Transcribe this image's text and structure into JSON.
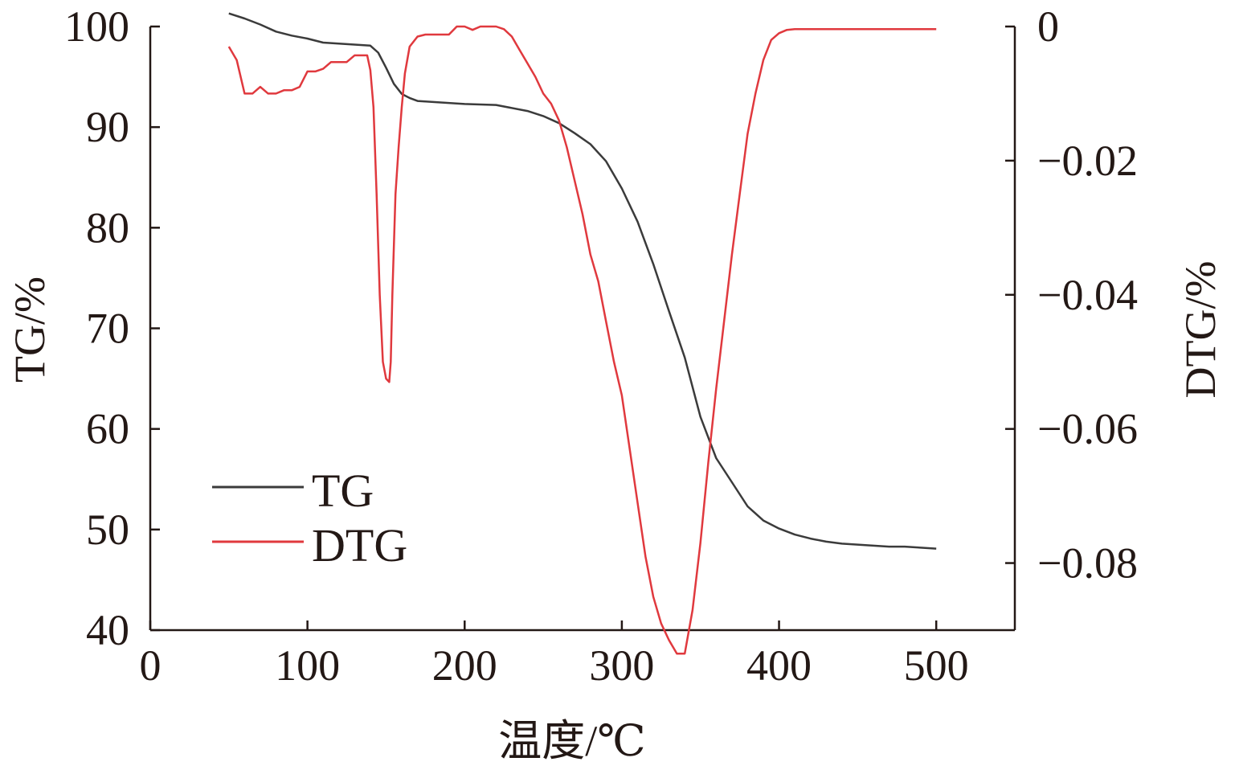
{
  "chart_data": {
    "type": "line",
    "xlabel": "温度/℃",
    "ylabel_left": "TG/%",
    "ylabel_right": "DTG/%",
    "xlim": [
      0,
      550
    ],
    "ylim_left": [
      40,
      100
    ],
    "ylim_right": [
      -0.09,
      0
    ],
    "x_ticks": [
      "0",
      "100",
      "200",
      "300",
      "400",
      "500"
    ],
    "y_left_ticks": [
      "40",
      "50",
      "60",
      "70",
      "80",
      "90",
      "100"
    ],
    "y_right_ticks": [
      "0",
      "−0.02",
      "−0.04",
      "−0.06",
      "−0.08"
    ],
    "legend": {
      "position": "lower-left",
      "entries": [
        "TG",
        "DTG"
      ]
    },
    "grid": false,
    "series": [
      {
        "name": "TG",
        "axis": "left",
        "color": "#3b3b3b",
        "x": [
          50,
          60,
          70,
          80,
          90,
          100,
          110,
          120,
          130,
          140,
          145,
          150,
          155,
          160,
          165,
          170,
          180,
          200,
          220,
          240,
          250,
          260,
          270,
          280,
          290,
          300,
          310,
          320,
          330,
          340,
          350,
          360,
          370,
          380,
          390,
          400,
          410,
          420,
          430,
          440,
          450,
          460,
          470,
          480,
          490,
          500
        ],
        "y": [
          101.3,
          100.8,
          100.2,
          99.5,
          99.1,
          98.8,
          98.4,
          98.3,
          98.2,
          98.1,
          97.4,
          95.9,
          94.3,
          93.3,
          92.9,
          92.6,
          92.5,
          92.3,
          92.2,
          91.6,
          91.1,
          90.4,
          89.4,
          88.3,
          86.6,
          83.9,
          80.6,
          76.4,
          71.7,
          67.1,
          61.2,
          57.1,
          54.7,
          52.3,
          50.9,
          50.1,
          49.5,
          49.1,
          48.8,
          48.6,
          48.5,
          48.4,
          48.3,
          48.3,
          48.2,
          48.1
        ]
      },
      {
        "name": "DTG",
        "axis": "right",
        "color": "#e0393e",
        "x": [
          50,
          55,
          60,
          62,
          65,
          70,
          75,
          80,
          85,
          90,
          95,
          100,
          105,
          110,
          115,
          120,
          125,
          130,
          135,
          138,
          140,
          142,
          144,
          146,
          148,
          150,
          152,
          153,
          154,
          156,
          158,
          160,
          162,
          165,
          170,
          175,
          180,
          185,
          190,
          195,
          200,
          205,
          210,
          215,
          220,
          225,
          230,
          235,
          240,
          245,
          250,
          255,
          260,
          265,
          270,
          275,
          280,
          285,
          290,
          295,
          300,
          305,
          310,
          315,
          320,
          325,
          330,
          335,
          340,
          345,
          350,
          355,
          360,
          365,
          370,
          375,
          380,
          385,
          390,
          395,
          400,
          405,
          410,
          415,
          420,
          425,
          430,
          435,
          440,
          445,
          450,
          455,
          460,
          465,
          470,
          475,
          480,
          485,
          490,
          495,
          500
        ],
        "y": [
          -0.003,
          -0.005,
          -0.01,
          -0.01,
          -0.01,
          -0.009,
          -0.01,
          -0.01,
          -0.0095,
          -0.0095,
          -0.009,
          -0.0067,
          -0.0067,
          -0.0063,
          -0.0053,
          -0.0053,
          -0.0053,
          -0.0043,
          -0.0043,
          -0.0043,
          -0.0065,
          -0.012,
          -0.025,
          -0.04,
          -0.05,
          -0.0525,
          -0.053,
          -0.05,
          -0.04,
          -0.025,
          -0.018,
          -0.012,
          -0.007,
          -0.003,
          -0.0015,
          -0.0012,
          -0.0012,
          -0.0012,
          -0.0012,
          0.0,
          0.0,
          -0.0005,
          0.0,
          0.0,
          0.0,
          -0.0004,
          -0.0015,
          -0.0035,
          -0.0055,
          -0.0075,
          -0.01,
          -0.0115,
          -0.014,
          -0.018,
          -0.023,
          -0.028,
          -0.034,
          -0.038,
          -0.044,
          -0.05,
          -0.055,
          -0.063,
          -0.071,
          -0.079,
          -0.085,
          -0.089,
          -0.0915,
          -0.0935,
          -0.0935,
          -0.087,
          -0.077,
          -0.065,
          -0.054,
          -0.044,
          -0.034,
          -0.025,
          -0.016,
          -0.01,
          -0.005,
          -0.002,
          -0.001,
          -0.0005,
          -0.0004,
          -0.0004,
          -0.0004,
          -0.0004,
          -0.0004,
          -0.0004,
          -0.0004,
          -0.0004,
          -0.0004,
          -0.0004,
          -0.0004,
          -0.0004,
          -0.0004,
          -0.0004,
          -0.0004,
          -0.0004,
          -0.0004,
          -0.0004,
          -0.0004
        ]
      }
    ]
  }
}
